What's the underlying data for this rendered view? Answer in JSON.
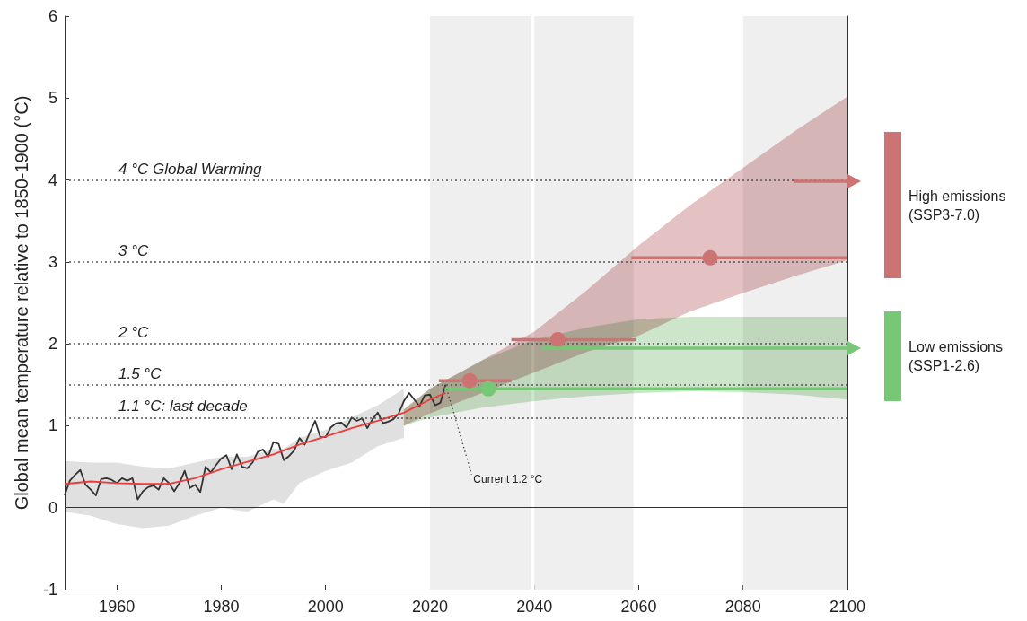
{
  "chart_data": {
    "type": "line",
    "ylabel": "Global mean temperature relative to 1850-1900 (°C)",
    "xlim": [
      1950,
      2100
    ],
    "xticks": [
      1960,
      1980,
      2000,
      2020,
      2040,
      2060,
      2080,
      2100
    ],
    "ylim": [
      -1,
      6
    ],
    "yticks": [
      -1,
      0,
      1,
      2,
      3,
      4,
      5,
      6
    ],
    "grid": false,
    "legend": "right",
    "series": [
      {
        "type": "area",
        "color": "#e0e0e0",
        "x": [
          1950,
          1955,
          1960,
          1965,
          1970,
          1975,
          1980,
          1985,
          1990,
          1992,
          1995,
          2000,
          2005,
          2010,
          2015
        ],
        "values": [
          null,
          null,
          null,
          null,
          null,
          null,
          null,
          null,
          null,
          null,
          null,
          null,
          null,
          null,
          null
        ],
        "lower": [
          -0.05,
          -0.1,
          -0.2,
          -0.25,
          -0.22,
          -0.1,
          0,
          -0.05,
          0.1,
          0.05,
          0.3,
          0.45,
          0.55,
          0.75,
          0.85
        ],
        "upper": [
          0.57,
          0.55,
          0.55,
          0.5,
          0.48,
          0.55,
          0.62,
          0.62,
          0.72,
          0.72,
          0.85,
          0.95,
          1.1,
          1.25,
          1.45
        ]
      },
      {
        "type": "area",
        "color": "#e4c1c2",
        "x": [
          2015,
          2020,
          2030,
          2040,
          2050,
          2060,
          2070,
          2080,
          2090,
          2100
        ],
        "values": [
          null,
          null,
          null,
          null,
          null,
          null,
          null,
          null,
          null,
          null
        ],
        "lower": [
          1.0,
          1.15,
          1.4,
          1.65,
          1.9,
          2.1,
          2.4,
          2.62,
          2.83,
          3.02
        ],
        "upper": [
          1.2,
          1.45,
          1.8,
          2.15,
          2.65,
          3.2,
          3.7,
          4.15,
          4.6,
          5.02
        ]
      },
      {
        "type": "area",
        "color": "#cde6cb",
        "x": [
          2015,
          2020,
          2030,
          2040,
          2050,
          2060,
          2070,
          2080,
          2090,
          2100
        ],
        "values": [
          null,
          null,
          null,
          null,
          null,
          null,
          null,
          null,
          null,
          null
        ],
        "lower": [
          1.0,
          1.1,
          1.22,
          1.3,
          1.36,
          1.4,
          1.42,
          1.41,
          1.38,
          1.32
        ],
        "upper": [
          1.2,
          1.45,
          1.8,
          2.05,
          2.2,
          2.3,
          2.33,
          2.33,
          2.33,
          2.33
        ]
      },
      {
        "color": "#333333",
        "x": [
          1950,
          1951,
          1952,
          1953,
          1954,
          1955,
          1956,
          1957,
          1958,
          1959,
          1960,
          1961,
          1962,
          1963,
          1964,
          1965,
          1966,
          1967,
          1968,
          1969,
          1970,
          1971,
          1972,
          1973,
          1974,
          1975,
          1976,
          1977,
          1978,
          1979,
          1980,
          1981,
          1982,
          1983,
          1984,
          1985,
          1986,
          1987,
          1988,
          1989,
          1990,
          1991,
          1992,
          1993,
          1994,
          1995,
          1996,
          1997,
          1998,
          1999,
          2000,
          2001,
          2002,
          2003,
          2004,
          2005,
          2006,
          2007,
          2008,
          2009,
          2010,
          2011,
          2012,
          2013,
          2014,
          2015,
          2016,
          2017,
          2018,
          2019,
          2020,
          2021,
          2022,
          2023
        ],
        "values": [
          0.15,
          0.33,
          0.4,
          0.46,
          0.28,
          0.22,
          0.15,
          0.35,
          0.36,
          0.34,
          0.3,
          0.36,
          0.33,
          0.36,
          0.1,
          0.2,
          0.25,
          0.27,
          0.22,
          0.36,
          0.3,
          0.2,
          0.3,
          0.45,
          0.24,
          0.28,
          0.19,
          0.5,
          0.43,
          0.52,
          0.6,
          0.64,
          0.47,
          0.65,
          0.5,
          0.48,
          0.55,
          0.68,
          0.71,
          0.62,
          0.8,
          0.78,
          0.58,
          0.63,
          0.7,
          0.85,
          0.77,
          0.92,
          1.06,
          0.86,
          0.86,
          0.98,
          1.03,
          1.04,
          0.98,
          1.1,
          1.06,
          1.09,
          0.97,
          1.08,
          1.16,
          1.03,
          1.05,
          1.08,
          1.15,
          1.3,
          1.4,
          1.32,
          1.24,
          1.37,
          1.38,
          1.25,
          1.28,
          1.5
        ]
      },
      {
        "color": "#ee3b3b",
        "x": [
          1950,
          1955,
          1960,
          1965,
          1970,
          1975,
          1980,
          1985,
          1990,
          1995,
          2000,
          2005,
          2010,
          2015,
          2020,
          2023
        ],
        "values": [
          0.29,
          0.32,
          0.3,
          0.29,
          0.29,
          0.36,
          0.47,
          0.56,
          0.65,
          0.77,
          0.87,
          0.97,
          1.06,
          1.16,
          1.32,
          1.4
        ]
      },
      {
        "type": "scatter",
        "name": "High emissions (SSP3-7.0)",
        "color": "#cc7373",
        "marker": "circle",
        "x": [
          2027.6,
          2044.5,
          2073.7
        ],
        "values": [
          1.55,
          2.05,
          3.05
        ],
        "xerrors": [
          [
            2021.7,
            2035.6
          ],
          [
            2035.6,
            2059.4
          ],
          [
            2058.6,
            2100
          ]
        ]
      },
      {
        "type": "scatter",
        "name": "Low emissions (SSP1-2.6)",
        "color": "#77c876",
        "marker": "circle",
        "x": [
          2031.2
        ],
        "values": [
          1.45
        ],
        "xerrors": [
          [
            2022.8,
            2100
          ]
        ]
      }
    ],
    "ref_lines": [
      {
        "axis": "y",
        "value": 4,
        "label": "4 °C Global Warming",
        "line_style": "dotted"
      },
      {
        "axis": "y",
        "value": 3,
        "label": "3 °C",
        "line_style": "dotted"
      },
      {
        "axis": "y",
        "value": 2,
        "label": "2 °C",
        "line_style": "dotted"
      },
      {
        "axis": "y",
        "value": 1.5,
        "label": "1.5 °C",
        "line_style": "dotted"
      },
      {
        "axis": "y",
        "value": 1.1,
        "label": "1.1 °C: last decade",
        "line_style": "dotted"
      },
      {
        "axis": "y",
        "value": 0,
        "line_style": "solid",
        "color": "#333333"
      }
    ],
    "bands": [
      {
        "axis": "x",
        "from": 2020,
        "to": 2039.3,
        "color": "#efefef"
      },
      {
        "axis": "x",
        "from": 2040,
        "to": 2059,
        "color": "#efefef"
      },
      {
        "axis": "x",
        "from": 2080,
        "to": 2100,
        "color": "#efefef"
      }
    ],
    "annotations": [
      {
        "text": "Current 1.2 °C",
        "x": 2023,
        "y": 1.5
      }
    ]
  }
}
